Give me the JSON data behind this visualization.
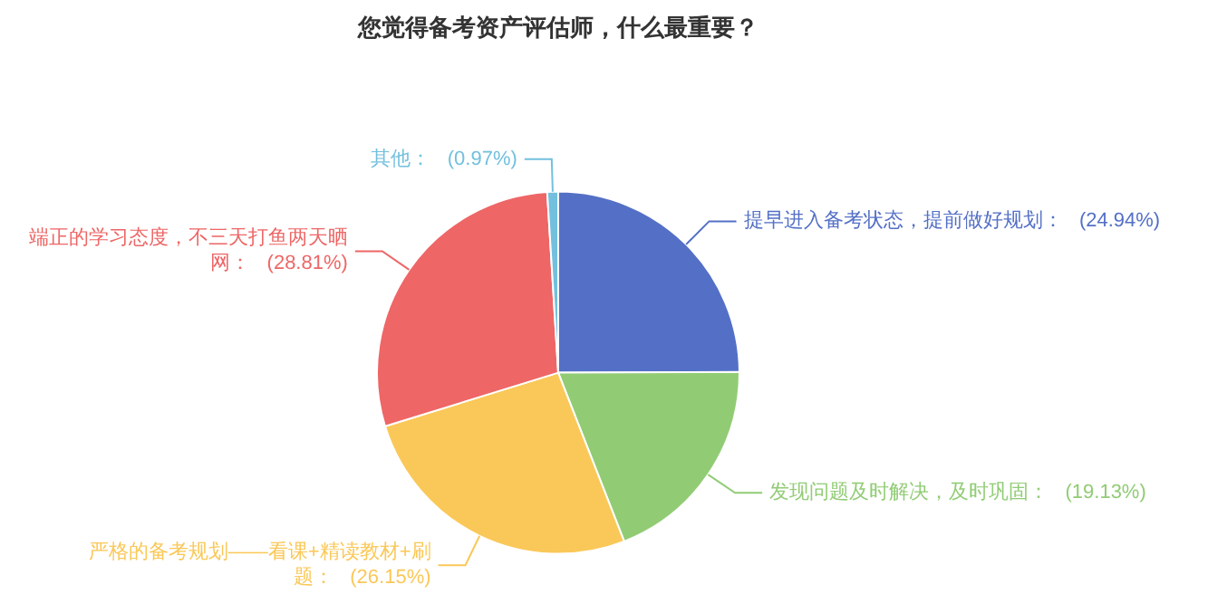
{
  "chart_data": {
    "type": "pie",
    "title": "您觉得备考资产评估师，什么最重要？",
    "categories": [
      "提早进入备考状态，提前做好规划",
      "发现问题及时解决，及时巩固",
      "严格的备考规划——看课+精读教材+刷题",
      "端正的学习态度，不三天打鱼两天晒网",
      "其他"
    ],
    "values": [
      24.94,
      19.13,
      26.15,
      28.81,
      0.97
    ],
    "value_labels": [
      "(24.94%)",
      "(19.13%)",
      "(26.15%)",
      "(28.81%)",
      "(0.97%)"
    ],
    "colors": [
      "#5470c6",
      "#91cc75",
      "#fac858",
      "#ee6666",
      "#73c0de"
    ],
    "legend": false
  }
}
